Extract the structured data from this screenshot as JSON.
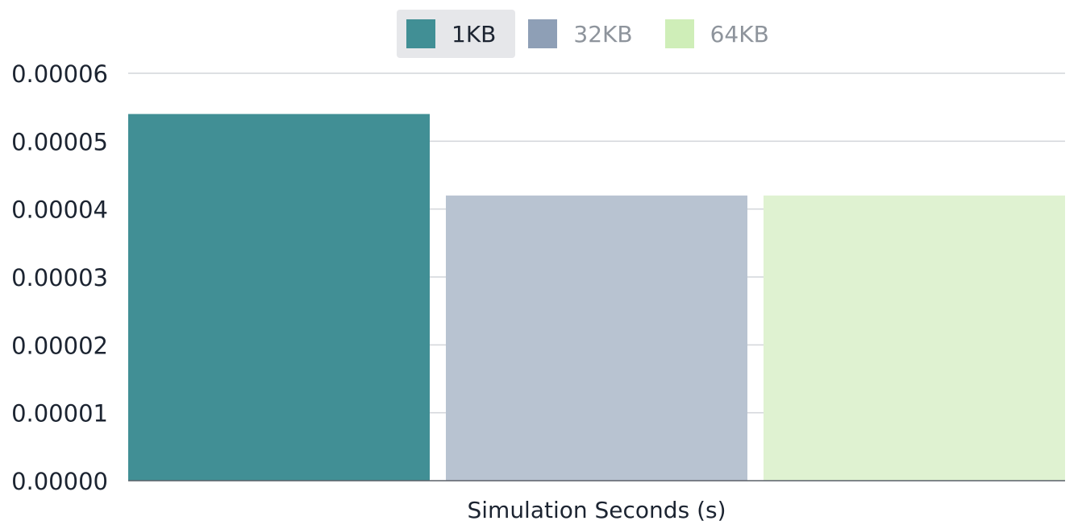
{
  "chart_data": {
    "type": "bar",
    "categories": [
      "Simulation Seconds (s)"
    ],
    "series": [
      {
        "name": "1KB",
        "values": [
          5.4e-05
        ],
        "color": "#418f95",
        "active": true
      },
      {
        "name": "32KB",
        "values": [
          4.2e-05
        ],
        "color": "#b8c3d1",
        "legend_color": "#8e9fb6",
        "active": false
      },
      {
        "name": "64KB",
        "values": [
          4.2e-05
        ],
        "color": "#dff2d1",
        "legend_color": "#cfeeb8",
        "active": false
      }
    ],
    "xlabel": "Simulation Seconds (s)",
    "ylabel": "",
    "ylim": [
      0,
      6e-05
    ],
    "yticks": [
      "0.00000",
      "0.00001",
      "0.00002",
      "0.00003",
      "0.00004",
      "0.00005",
      "0.00006"
    ],
    "grid": true,
    "legend_position": "top-center"
  }
}
